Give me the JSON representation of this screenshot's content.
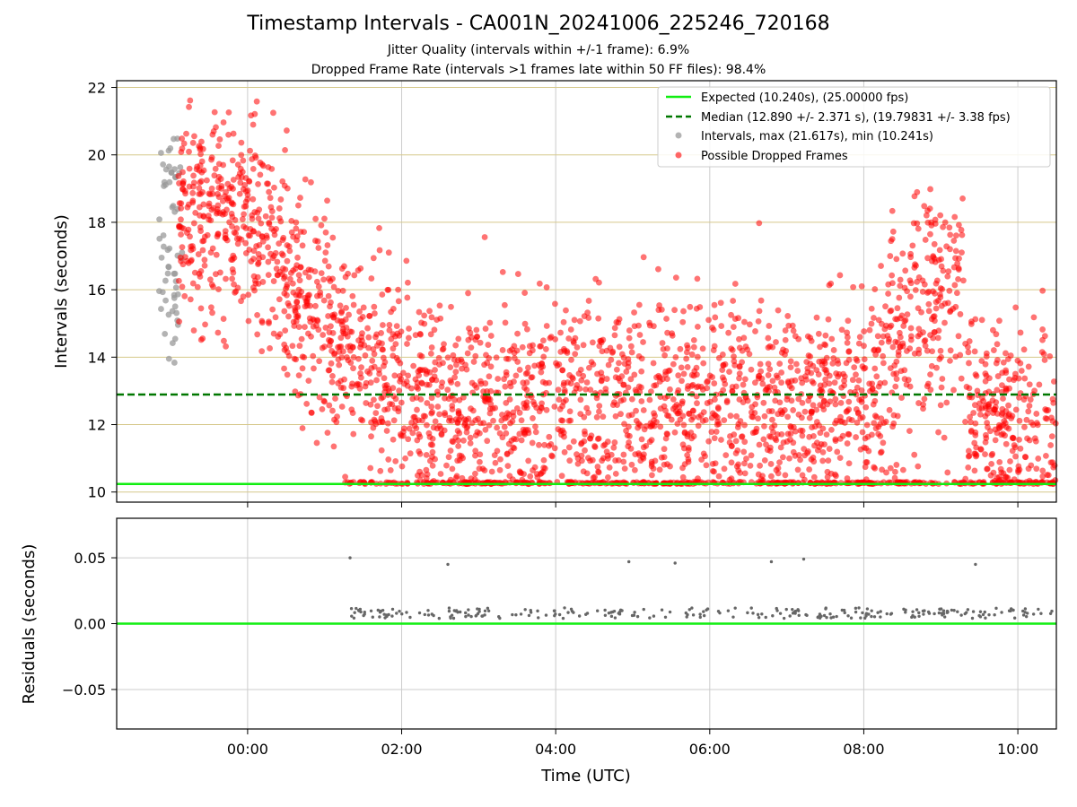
{
  "chart_data": [
    {
      "type": "scatter",
      "title": "Timestamp Intervals - CA001N_20241006_225246_720168",
      "subtitle_1": "Jitter Quality (intervals within +/-1 frame): 6.9%",
      "subtitle_2": "Dropped Frame Rate (intervals >1 frames late within 50 FF files): 98.4%",
      "xlabel": "",
      "ylabel": "Intervals (seconds)",
      "xlim_hours": [
        -1.7,
        10.5
      ],
      "ylim": [
        9.7,
        22.2
      ],
      "yticks": [
        10,
        12,
        14,
        16,
        18,
        20,
        22
      ],
      "ytick_labels": [
        "10",
        "12",
        "14",
        "16",
        "18",
        "20",
        "22"
      ],
      "grid": true,
      "legend_position": "top-right",
      "expected_value": 10.24,
      "median_value": 12.89,
      "legend": [
        "Expected (10.240s), (25.00000 fps)",
        "Median (12.890 +/- 2.371 s), (19.79831 +/- 3.38 fps)",
        "Intervals, max (21.617s), min (10.241s)",
        "Possible Dropped Frames"
      ],
      "colors": {
        "expected": "#11ee11",
        "median": "#007700",
        "intervals": "#999999",
        "dropped": "#ff0000",
        "hgrid": "#d6c88a"
      },
      "series": [
        {
          "name": "Intervals, max (21.617s), min (10.241s)",
          "x_range_hours": [
            -1.15,
            -0.85
          ],
          "y_range": [
            13.8,
            20.5
          ],
          "count": 60
        },
        {
          "name": "Possible Dropped Frames",
          "x_range_hours": [
            -0.9,
            10.5
          ],
          "y_range": [
            10.24,
            21.617
          ],
          "count": 3000
        }
      ]
    },
    {
      "type": "scatter",
      "xlabel": "Time (UTC)",
      "ylabel": "Residuals (seconds)",
      "xlim_hours": [
        -1.7,
        10.5
      ],
      "ylim": [
        -0.08,
        0.08
      ],
      "xticks_hours": [
        0,
        2,
        4,
        6,
        8,
        10
      ],
      "xtick_labels": [
        "00:00",
        "02:00",
        "04:00",
        "06:00",
        "08:00",
        "10:00"
      ],
      "yticks": [
        -0.05,
        0.0,
        0.05
      ],
      "ytick_labels": [
        "−0.05",
        "0.00",
        "0.05"
      ],
      "grid": true,
      "baseline": 0.0,
      "outliers": [
        {
          "x_hours": 1.33,
          "y": 0.05
        },
        {
          "x_hours": 2.6,
          "y": 0.045
        },
        {
          "x_hours": 4.95,
          "y": 0.047
        },
        {
          "x_hours": 5.55,
          "y": 0.046
        },
        {
          "x_hours": 6.8,
          "y": 0.047
        },
        {
          "x_hours": 7.22,
          "y": 0.049
        },
        {
          "x_hours": 9.45,
          "y": 0.045
        }
      ],
      "cluster": {
        "x_range_hours": [
          1.25,
          10.5
        ],
        "y_range": [
          0.004,
          0.012
        ],
        "count": 260
      }
    }
  ]
}
